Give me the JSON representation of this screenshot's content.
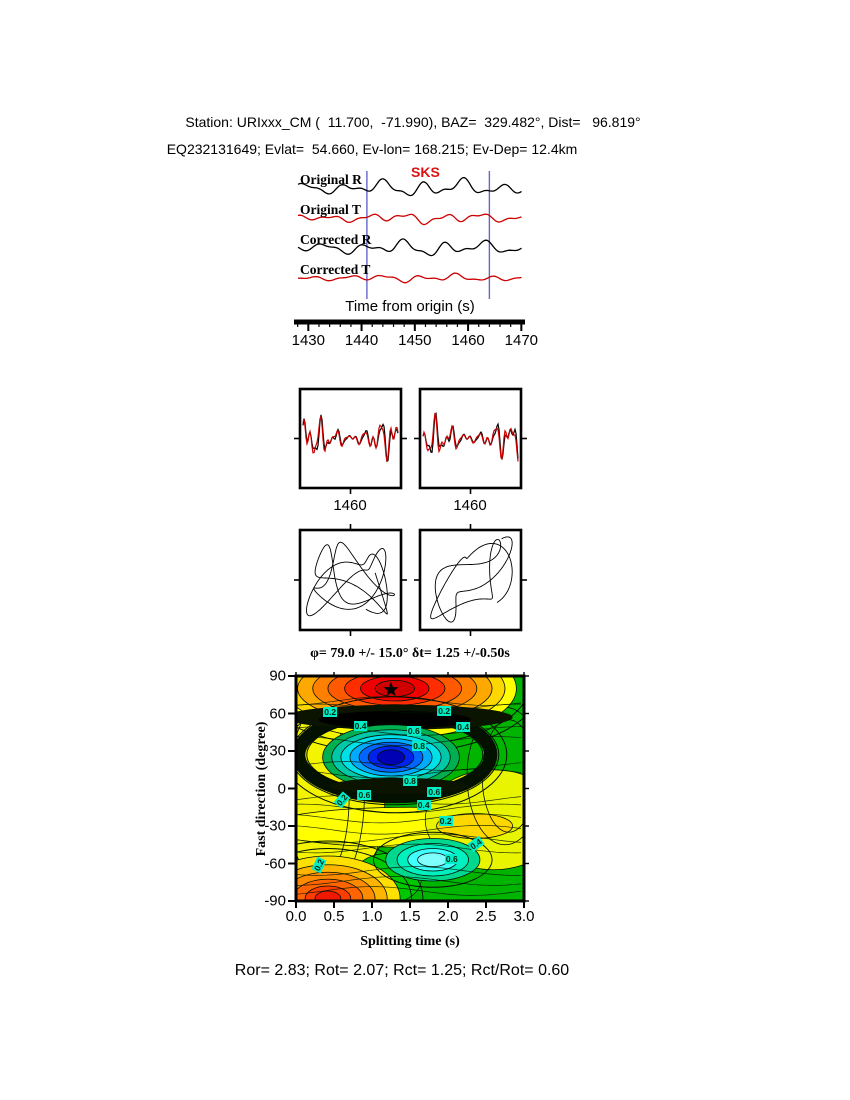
{
  "header": {
    "line1": "Station: URIxxx_CM (  11.700,  -71.990), BAZ=  329.482°, Dist=   96.819°",
    "line2": "EQ232131649; Evlat=  54.660, Ev-lon= 168.215; Ev-Dep= 12.4km"
  },
  "footer": {
    "results": "Ror= 2.83; Rot= 2.07; Rct= 1.25; Rct/Rot= 0.60"
  },
  "colors": {
    "trace_black": "#000000",
    "trace_red": "#cc0000",
    "phase_label_red": "#dd1111",
    "window_line_blue": "#6666cc",
    "contour_low_blue": "#0000b4",
    "contour_mid_green": "#00b400",
    "contour_high_red": "#d00000",
    "contour_label_bg": "#00eec8"
  },
  "chart_data": [
    {
      "type": "line",
      "name": "seismogram-panel",
      "traces": [
        {
          "label": "Original R",
          "color": "#000000"
        },
        {
          "label": "Original T",
          "color": "#cc0000"
        },
        {
          "label": "Corrected R",
          "color": "#000000"
        },
        {
          "label": "Corrected T",
          "color": "#cc0000"
        }
      ],
      "phase_label": "SKS",
      "xlabel": "Time from origin (s)",
      "x_range_s": [
        1427.5,
        1470.5
      ],
      "xticks": [
        1430,
        1440,
        1450,
        1460,
        1470
      ],
      "window_s": [
        1441,
        1464
      ]
    },
    {
      "type": "line",
      "name": "windowed-waveform-comparison",
      "panels": [
        {
          "xtick": 1460
        },
        {
          "xtick": 1460
        }
      ],
      "series_colors": [
        "#000000",
        "#cc0000"
      ]
    },
    {
      "type": "line",
      "name": "particle-motion",
      "panels": [
        "original",
        "corrected"
      ]
    },
    {
      "type": "heatmap",
      "name": "splitting-parameter-error-surface",
      "title": "φ= 79.0 +/- 15.0° δt= 1.25 +/-0.50s",
      "xlabel": "Splitting time (s)",
      "ylabel": "Fast direction (degree)",
      "xlim": [
        0.0,
        3.0
      ],
      "ylim": [
        -90,
        90
      ],
      "xticks": [
        "0.0",
        "0.5",
        "1.0",
        "1.5",
        "2.0",
        "2.5",
        "3.0"
      ],
      "yticks": [
        90,
        60,
        30,
        0,
        -30,
        -60,
        -90
      ],
      "best_fit": {
        "phi_deg": 79.0,
        "phi_err_deg": 15.0,
        "dt_s": 1.25,
        "dt_err_s": 0.5,
        "marker": "black-star"
      },
      "contour_levels": [
        0.2,
        0.4,
        0.6,
        0.8
      ],
      "contour_labels": [
        {
          "value": "0.2",
          "dt": 0.45,
          "phi": 61,
          "rot": 0
        },
        {
          "value": "0.4",
          "dt": 0.85,
          "phi": 50,
          "rot": 0
        },
        {
          "value": "0.2",
          "dt": 1.95,
          "phi": 62,
          "rot": 0
        },
        {
          "value": "0.4",
          "dt": 2.2,
          "phi": 49,
          "rot": 0
        },
        {
          "value": "0.6",
          "dt": 1.55,
          "phi": 46,
          "rot": 0
        },
        {
          "value": "0.8",
          "dt": 1.62,
          "phi": 34,
          "rot": 0
        },
        {
          "value": "0.8",
          "dt": 1.5,
          "phi": 6,
          "rot": 0
        },
        {
          "value": "0.6",
          "dt": 1.82,
          "phi": -3,
          "rot": 0
        },
        {
          "value": "0.6",
          "dt": 0.9,
          "phi": -5,
          "rot": 0
        },
        {
          "value": "0.4",
          "dt": 1.68,
          "phi": -13,
          "rot": 0
        },
        {
          "value": "0.2",
          "dt": 0.6,
          "phi": -9,
          "rot": -50
        },
        {
          "value": "0.2",
          "dt": 1.97,
          "phi": -26,
          "rot": 0
        },
        {
          "value": "0.4",
          "dt": 2.37,
          "phi": -44,
          "rot": -35
        },
        {
          "value": "0.6",
          "dt": 2.05,
          "phi": -56,
          "rot": 0
        },
        {
          "value": "0.2",
          "dt": 0.3,
          "phi": -61,
          "rot": -65
        }
      ]
    }
  ]
}
